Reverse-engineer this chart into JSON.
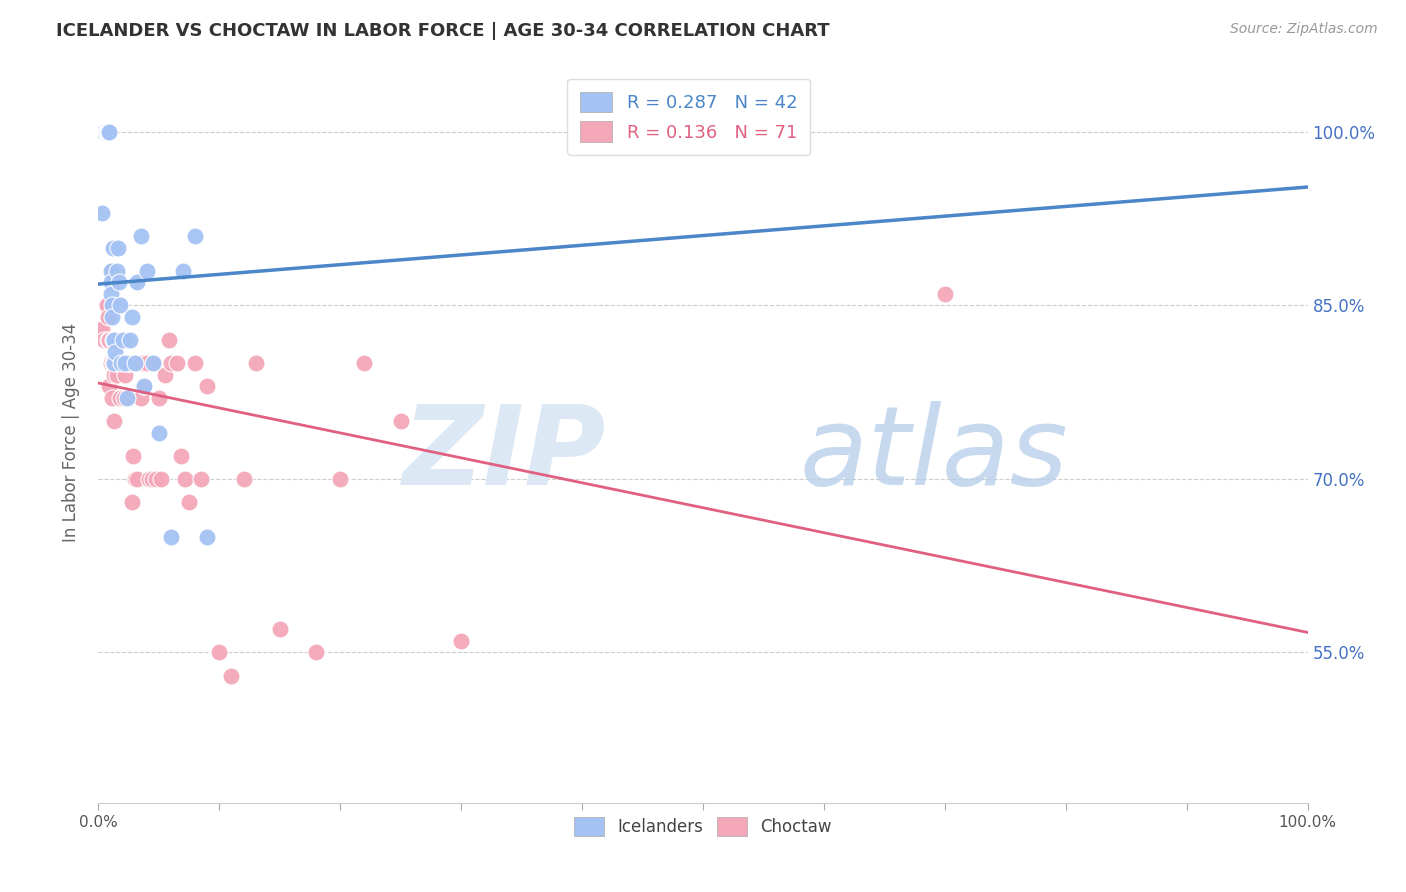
{
  "title": "ICELANDER VS CHOCTAW IN LABOR FORCE | AGE 30-34 CORRELATION CHART",
  "source": "Source: ZipAtlas.com",
  "ylabel": "In Labor Force | Age 30-34",
  "ytick_labels": [
    "100.0%",
    "85.0%",
    "70.0%",
    "55.0%"
  ],
  "ytick_values": [
    1.0,
    0.85,
    0.7,
    0.55
  ],
  "xlim": [
    0.0,
    1.0
  ],
  "ylim": [
    0.42,
    1.06
  ],
  "icelanders_color": "#a4c2f4",
  "choctaw_color": "#f4a7b9",
  "icelanders_R": 0.287,
  "icelanders_N": 42,
  "choctaw_R": 0.136,
  "choctaw_N": 71,
  "icelanders_line_color": "#4a86c8",
  "choctaw_line_color": "#e06080",
  "icelanders_x": [
    0.003,
    0.005,
    0.006,
    0.006,
    0.007,
    0.007,
    0.008,
    0.008,
    0.009,
    0.009,
    0.01,
    0.01,
    0.01,
    0.011,
    0.011,
    0.012,
    0.012,
    0.013,
    0.013,
    0.014,
    0.015,
    0.016,
    0.017,
    0.018,
    0.019,
    0.02,
    0.022,
    0.024,
    0.026,
    0.028,
    0.03,
    0.032,
    0.035,
    0.038,
    0.04,
    0.045,
    0.05,
    0.06,
    0.07,
    0.08,
    0.09,
    0.55
  ],
  "icelanders_y": [
    0.93,
    1.0,
    1.0,
    1.0,
    1.0,
    1.0,
    1.0,
    1.0,
    1.0,
    1.0,
    0.88,
    0.87,
    0.86,
    0.85,
    0.84,
    0.9,
    0.82,
    0.8,
    0.82,
    0.81,
    0.88,
    0.9,
    0.87,
    0.85,
    0.8,
    0.82,
    0.8,
    0.77,
    0.82,
    0.84,
    0.8,
    0.87,
    0.91,
    0.78,
    0.88,
    0.8,
    0.74,
    0.65,
    0.88,
    0.91,
    0.65,
    1.0
  ],
  "choctaw_x": [
    0.002,
    0.003,
    0.004,
    0.005,
    0.006,
    0.007,
    0.007,
    0.008,
    0.008,
    0.009,
    0.009,
    0.01,
    0.01,
    0.011,
    0.011,
    0.012,
    0.012,
    0.013,
    0.013,
    0.014,
    0.015,
    0.015,
    0.016,
    0.017,
    0.018,
    0.018,
    0.019,
    0.02,
    0.021,
    0.022,
    0.023,
    0.024,
    0.025,
    0.026,
    0.027,
    0.028,
    0.029,
    0.03,
    0.032,
    0.033,
    0.035,
    0.036,
    0.038,
    0.04,
    0.042,
    0.044,
    0.046,
    0.048,
    0.05,
    0.052,
    0.055,
    0.058,
    0.06,
    0.065,
    0.068,
    0.072,
    0.075,
    0.08,
    0.085,
    0.09,
    0.1,
    0.11,
    0.12,
    0.13,
    0.15,
    0.18,
    0.2,
    0.22,
    0.25,
    0.3,
    0.7
  ],
  "choctaw_y": [
    0.83,
    0.83,
    1.0,
    0.82,
    1.0,
    0.85,
    0.85,
    0.84,
    0.82,
    0.82,
    0.78,
    0.8,
    0.8,
    0.88,
    0.77,
    0.8,
    0.8,
    0.75,
    0.79,
    0.8,
    0.79,
    0.8,
    0.82,
    0.8,
    0.8,
    0.77,
    0.8,
    0.8,
    0.77,
    0.79,
    0.82,
    0.8,
    0.8,
    0.8,
    0.8,
    0.68,
    0.72,
    0.7,
    0.7,
    0.8,
    0.77,
    0.8,
    0.78,
    0.8,
    0.7,
    0.7,
    0.8,
    0.7,
    0.77,
    0.7,
    0.79,
    0.82,
    0.8,
    0.8,
    0.72,
    0.7,
    0.68,
    0.8,
    0.7,
    0.78,
    0.55,
    0.53,
    0.7,
    0.8,
    0.57,
    0.55,
    0.7,
    0.8,
    0.75,
    0.56,
    0.86
  ]
}
